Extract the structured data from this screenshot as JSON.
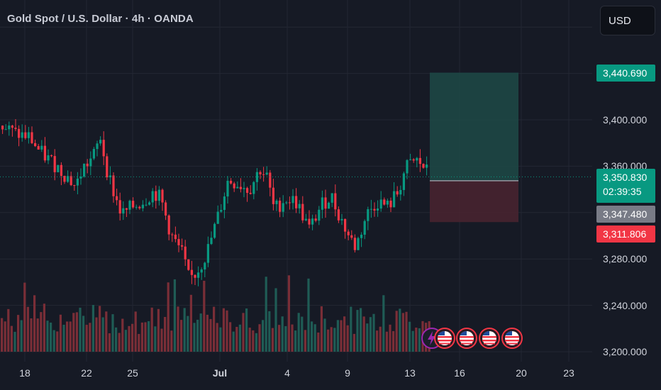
{
  "title": "Gold Spot / U.S. Dollar · 4h · OANDA",
  "currency_button": "USD",
  "colors": {
    "background": "#161a25",
    "up": "#089981",
    "down": "#f23645",
    "volume_up": "#1f5c55",
    "volume_down": "#7a2e37",
    "target_zone": "#1d4a47",
    "stop_zone": "#4a2530",
    "grid": "#232733",
    "price_line": "#089981"
  },
  "price_tags": {
    "target": "3,440.690",
    "last": "3,350.830",
    "countdown": "02:39:35",
    "entry": "3,347.480",
    "stop": "3,311.806"
  },
  "events": [
    {
      "icon": "lightning-icon",
      "color": "#9c27b0"
    },
    {
      "icon": "us-flag-icon",
      "color": "#f23645"
    },
    {
      "icon": "us-flag-icon",
      "color": "#f23645"
    },
    {
      "icon": "us-flag-icon",
      "color": "#f23645"
    },
    {
      "icon": "us-flag-icon",
      "color": "#f23645"
    }
  ],
  "chart_data": {
    "type": "candlestick",
    "symbol": "Gold Spot / U.S. Dollar",
    "interval": "4h",
    "exchange": "OANDA",
    "y_ticks": [
      "3,200.000",
      "3,240.000",
      "3,280.000",
      "3,360.000",
      "3,400.000"
    ],
    "ylim": [
      3198,
      3460
    ],
    "x_ticks": [
      "18",
      "22",
      "25",
      "Jul",
      "4",
      "9",
      "13",
      "16",
      "20",
      "23"
    ],
    "grid": true,
    "last_price": 3350.83,
    "position": {
      "type": "long",
      "entry": 3347.48,
      "target": 3440.69,
      "stop": 3311.806
    },
    "ohlc_approx": [
      {
        "date": "Jun 18",
        "close": 3390
      },
      {
        "date": "Jun 22",
        "close": 3375
      },
      {
        "date": "Jun 23",
        "close": 3392
      },
      {
        "date": "Jun 25",
        "close": 3330
      },
      {
        "date": "Jun 30",
        "close": 3270
      },
      {
        "date": "Jul 1",
        "close": 3300
      },
      {
        "date": "Jul 3",
        "close": 3355
      },
      {
        "date": "Jul 4",
        "close": 3335
      },
      {
        "date": "Jul 7",
        "close": 3300
      },
      {
        "date": "Jul 9",
        "close": 3290
      },
      {
        "date": "Jul 11",
        "close": 3340
      },
      {
        "date": "Jul 13",
        "close": 3365
      },
      {
        "date": "Jul 14",
        "close": 3350.83
      }
    ]
  }
}
